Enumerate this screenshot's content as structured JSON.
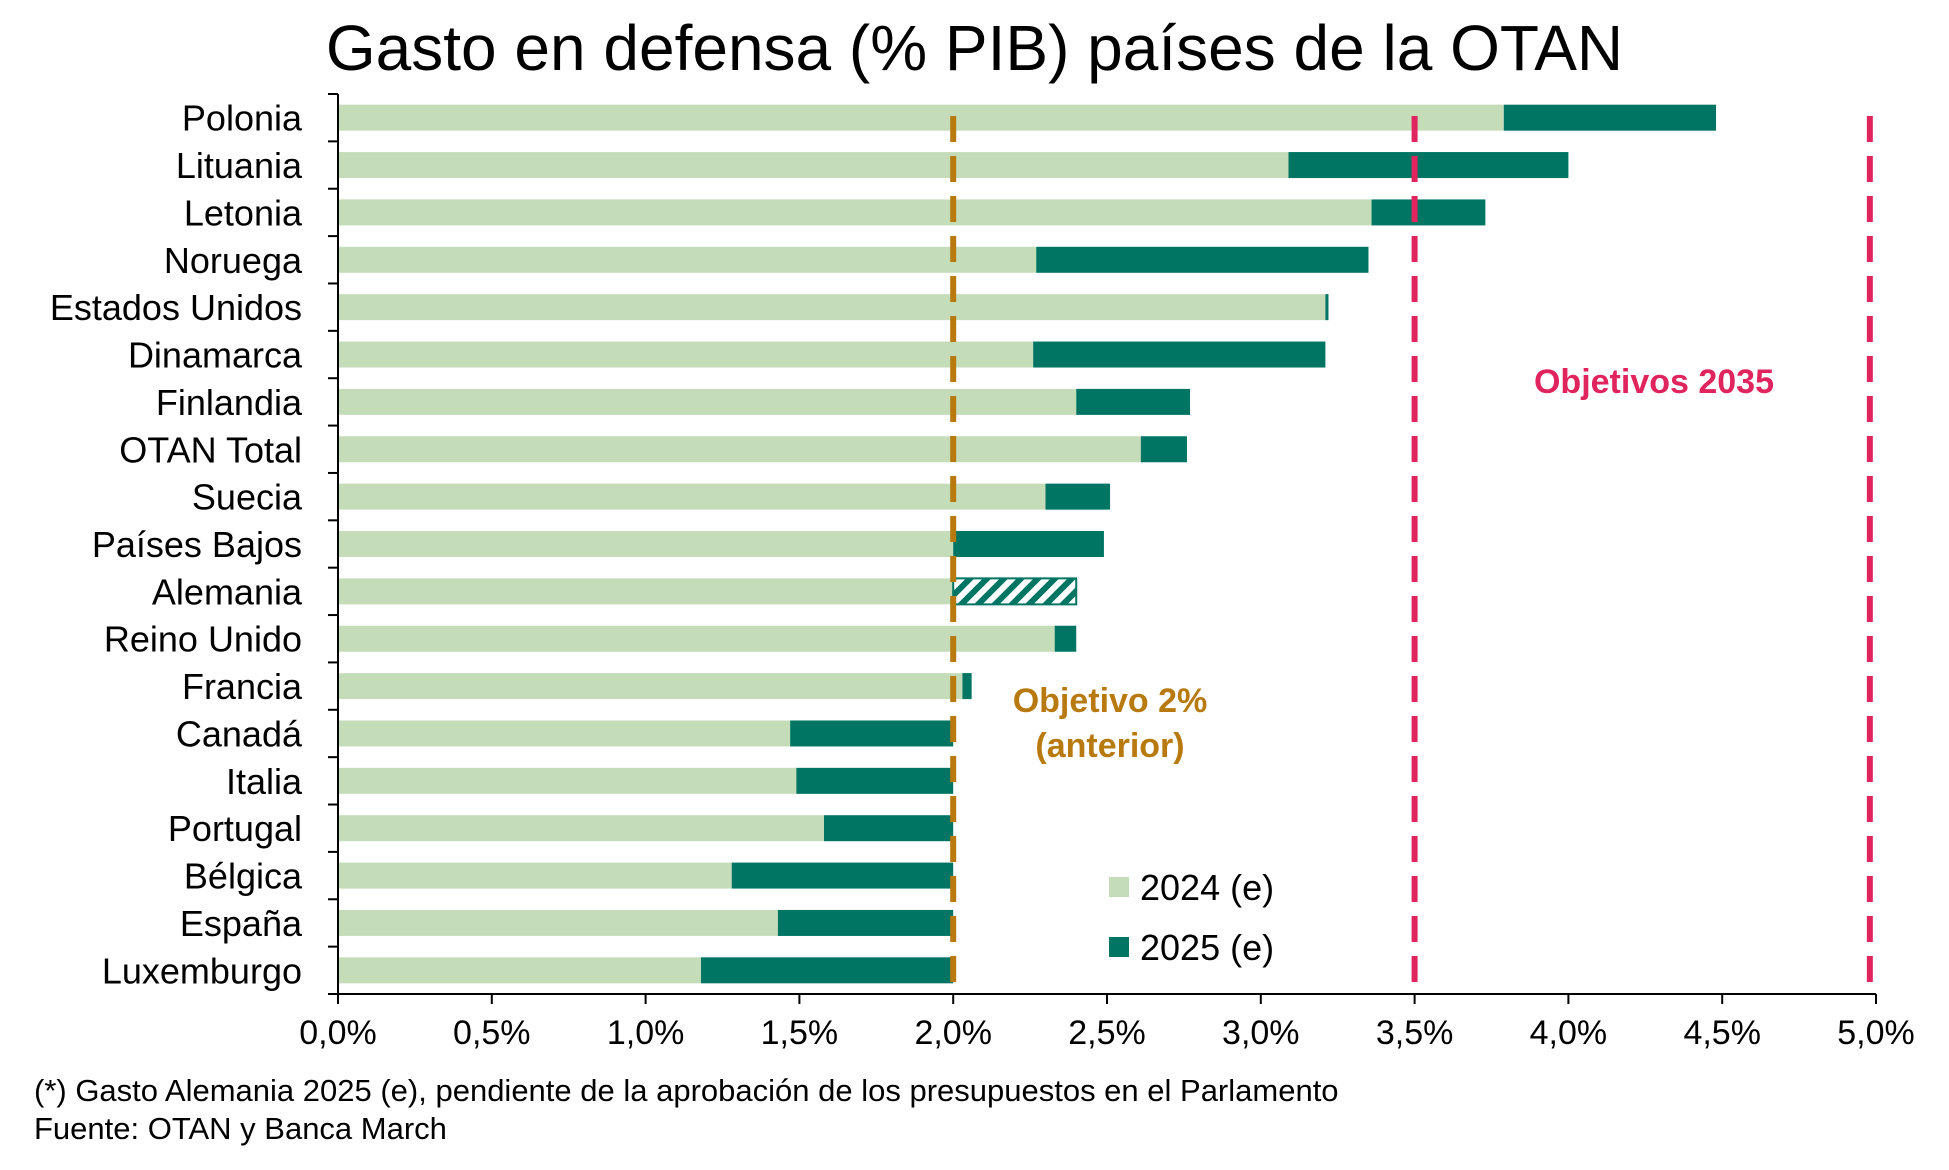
{
  "chart_data": {
    "type": "bar",
    "orientation": "horizontal",
    "stacked": "overlay",
    "title": "Gasto en defensa (% PIB) países de la OTAN",
    "categories": [
      "Polonia",
      "Lituania",
      "Letonia",
      "Noruega",
      "Estados Unidos",
      "Dinamarca",
      "Finlandia",
      "OTAN Total",
      "Suecia",
      "Países Bajos",
      "Alemania",
      "Reino Unido",
      "Francia",
      "Canadá",
      "Italia",
      "Portugal",
      "Bélgica",
      "España",
      "Luxemburgo"
    ],
    "series": [
      {
        "name": "2024 (e)",
        "color": "#c5dcb9",
        "values": [
          3.79,
          3.09,
          3.36,
          2.27,
          3.21,
          2.26,
          2.4,
          2.61,
          2.3,
          2.0,
          2.0,
          2.33,
          2.03,
          1.47,
          1.49,
          1.58,
          1.28,
          1.43,
          1.18
        ]
      },
      {
        "name": "2025 (e)",
        "color": "#007564",
        "values": [
          4.48,
          4.0,
          3.73,
          3.35,
          3.22,
          3.21,
          2.77,
          2.76,
          2.51,
          2.49,
          2.4,
          2.4,
          2.06,
          2.0,
          2.0,
          2.0,
          2.0,
          2.0,
          2.0
        ]
      }
    ],
    "hatched_category": "Alemania",
    "xlim": [
      0,
      5
    ],
    "x_ticks": [
      "0,0%",
      "0,5%",
      "1,0%",
      "1,5%",
      "2,0%",
      "2,5%",
      "3,0%",
      "3,5%",
      "4,0%",
      "4,5%",
      "5,0%"
    ],
    "reference_lines": [
      {
        "value": 2.0,
        "color": "#b8790f",
        "label_lines": [
          "Objetivo 2%",
          "(anterior)"
        ]
      },
      {
        "value": 3.5,
        "color": "#e0245e"
      },
      {
        "value": 4.98,
        "color": "#e0245e"
      }
    ],
    "annotation": {
      "text": "Objetivos 2035",
      "color": "#e0245e"
    },
    "legend_position": "bottom-center",
    "footnote": "(*) Gasto Alemania 2025 (e), pendiente de la aprobación de los presupuestos en el Parlamento",
    "source": "Fuente: OTAN y Banca March"
  }
}
